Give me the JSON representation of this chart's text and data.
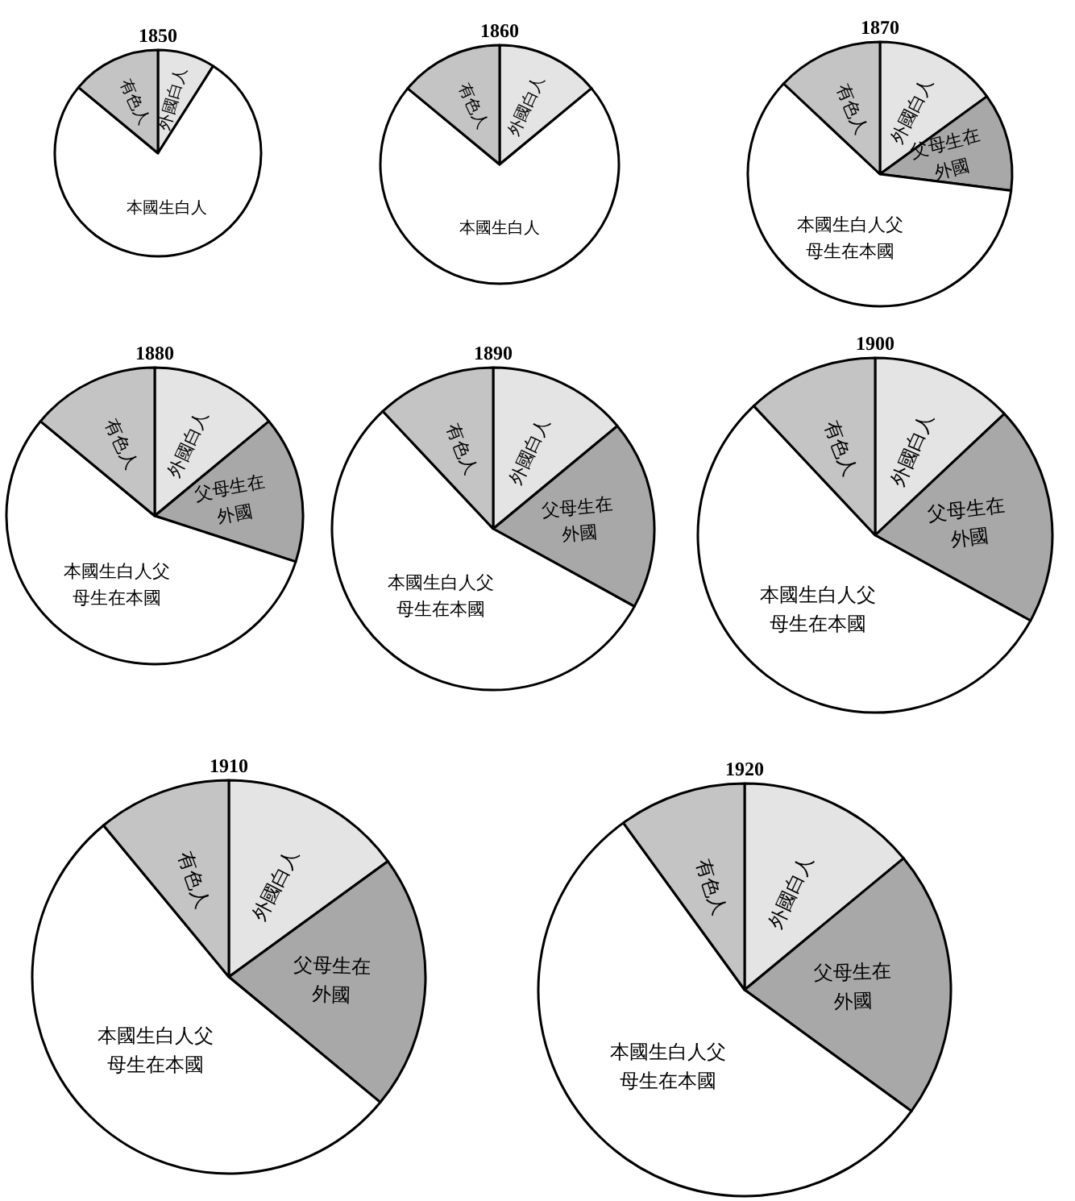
{
  "chart_data": [
    {
      "type": "pie",
      "title": "1850",
      "categories": [
        "外國白人",
        "本國生白人",
        "有色人"
      ],
      "values": [
        9,
        77,
        14
      ],
      "colors": [
        "#e4e4e4",
        "#ffffff",
        "#c4c4c4"
      ]
    },
    {
      "type": "pie",
      "title": "1860",
      "categories": [
        "外國白人",
        "本國生白人",
        "有色人"
      ],
      "values": [
        14,
        72,
        14
      ],
      "colors": [
        "#e4e4e4",
        "#ffffff",
        "#c4c4c4"
      ]
    },
    {
      "type": "pie",
      "title": "1870",
      "categories": [
        "外國白人",
        "父母生在外國",
        "本國生白人父母生在本國",
        "有色人"
      ],
      "values": [
        15,
        12,
        60,
        13
      ],
      "colors": [
        "#e4e4e4",
        "#a8a8a8",
        "#ffffff",
        "#c4c4c4"
      ]
    },
    {
      "type": "pie",
      "title": "1880",
      "categories": [
        "外國白人",
        "父母生在外國",
        "本國生白人父母生在本國",
        "有色人"
      ],
      "values": [
        14,
        16,
        56,
        14
      ],
      "colors": [
        "#e4e4e4",
        "#a8a8a8",
        "#ffffff",
        "#c4c4c4"
      ]
    },
    {
      "type": "pie",
      "title": "1890",
      "categories": [
        "外國白人",
        "父母生在外國",
        "本國生白人父母生在本國",
        "有色人"
      ],
      "values": [
        14,
        19,
        55,
        12
      ],
      "colors": [
        "#e4e4e4",
        "#a8a8a8",
        "#ffffff",
        "#c4c4c4"
      ]
    },
    {
      "type": "pie",
      "title": "1900",
      "categories": [
        "外國白人",
        "父母生在外國",
        "本國生白人父母生在本國",
        "有色人"
      ],
      "values": [
        13,
        20,
        55,
        12
      ],
      "colors": [
        "#e4e4e4",
        "#a8a8a8",
        "#ffffff",
        "#c4c4c4"
      ]
    },
    {
      "type": "pie",
      "title": "1910",
      "categories": [
        "外國白人",
        "父母生在外國",
        "本國生白人父母生在本國",
        "有色人"
      ],
      "values": [
        15,
        21,
        53,
        11
      ],
      "colors": [
        "#e4e4e4",
        "#a8a8a8",
        "#ffffff",
        "#c4c4c4"
      ]
    },
    {
      "type": "pie",
      "title": "1920",
      "categories": [
        "外國白人",
        "父母生在外國",
        "本國生白人父母生在本國",
        "有色人"
      ],
      "values": [
        14,
        21,
        55,
        10
      ],
      "colors": [
        "#e4e4e4",
        "#a8a8a8",
        "#ffffff",
        "#c4c4c4"
      ]
    }
  ]
}
